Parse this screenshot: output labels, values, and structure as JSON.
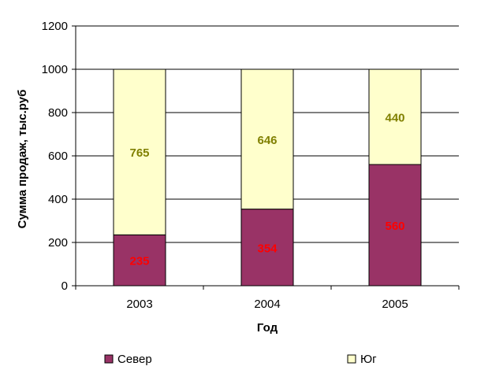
{
  "chart_data": {
    "type": "bar",
    "stacked": true,
    "categories": [
      "2003",
      "2004",
      "2005"
    ],
    "series": [
      {
        "name": "Север",
        "values": [
          235,
          354,
          560
        ],
        "color": "#993366",
        "label_color": "#ff0000"
      },
      {
        "name": "Юг",
        "values": [
          765,
          646,
          440
        ],
        "color": "#ffffcc",
        "label_color": "#808000"
      }
    ],
    "xlabel": "Год",
    "ylabel": "Сумма продаж, тыс.руб",
    "ylim": [
      0,
      1200
    ],
    "yticks": [
      0,
      200,
      400,
      600,
      800,
      1000,
      1200
    ],
    "grid": true,
    "legend": "bottom"
  }
}
